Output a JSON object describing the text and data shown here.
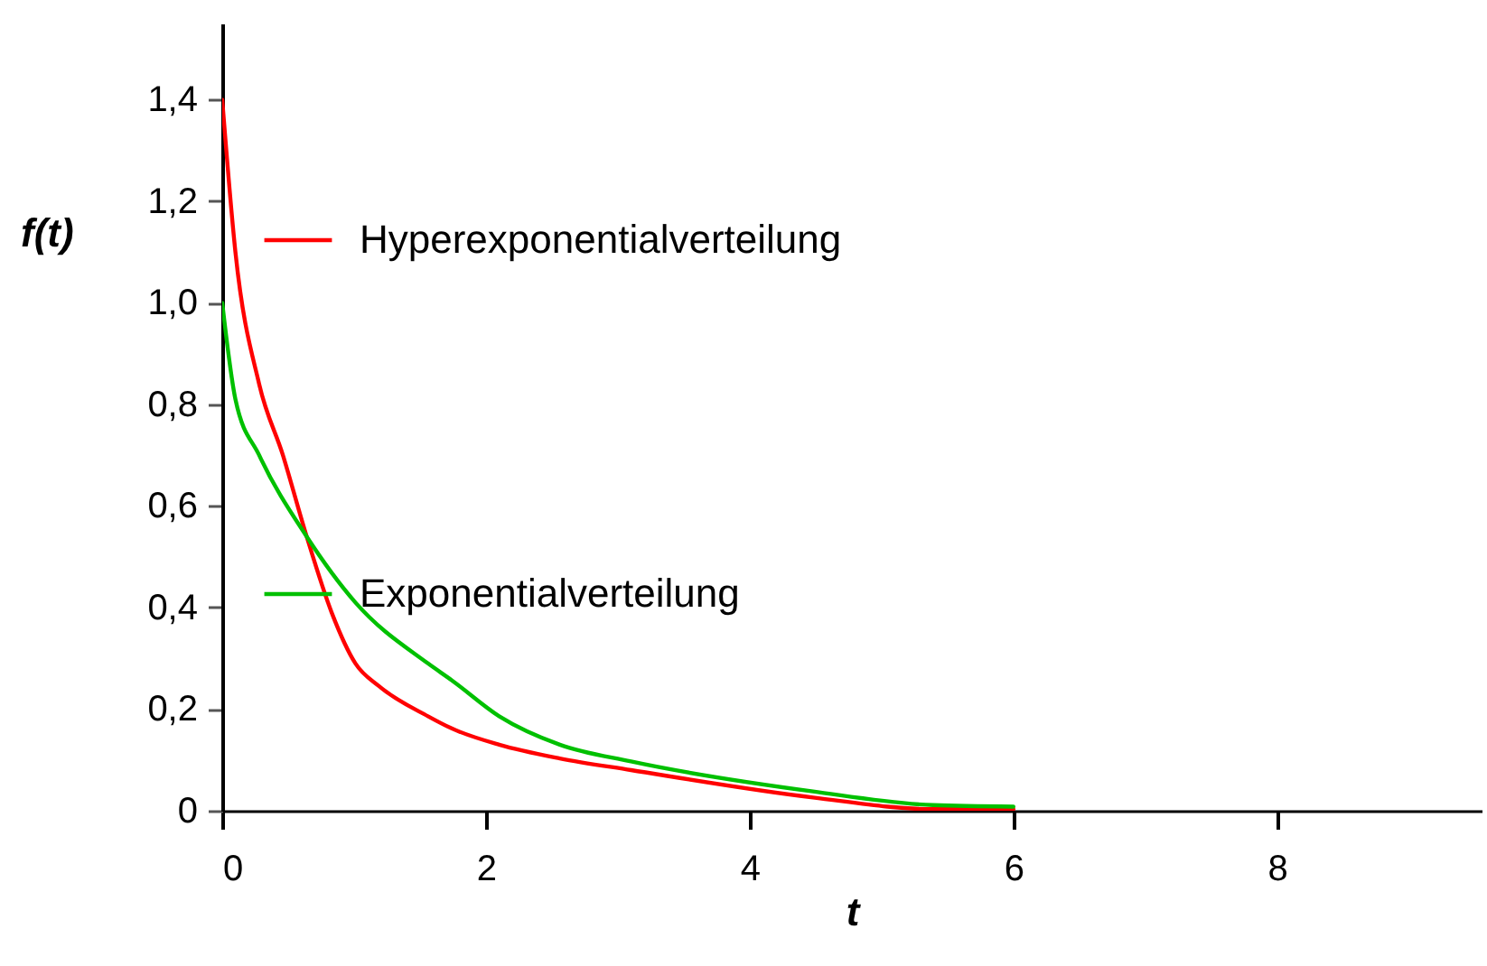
{
  "chart_data": {
    "type": "line",
    "xlabel": "t",
    "ylabel": "f(t)",
    "xlim": [
      0,
      9.55
    ],
    "ylim": [
      0,
      1.55
    ],
    "xticks": [
      0,
      2,
      4,
      6,
      8
    ],
    "yticks": [
      0,
      {
        "value": 0.2,
        "label": "0,2"
      },
      {
        "value": 0.4,
        "label": "0,4"
      },
      {
        "value": 0.6,
        "label": "0,6"
      },
      {
        "value": 0.8,
        "label": "0,8"
      },
      {
        "value": 1.0,
        "label": "1,0"
      },
      {
        "value": 1.2,
        "label": "1,2"
      },
      {
        "value": 1.4,
        "label": "1,4"
      }
    ],
    "legend": "left",
    "grid": false,
    "series": [
      {
        "name": "Hyperexponentialverteilung",
        "color": "#ff0000",
        "x": [
          0,
          0.1,
          0.28,
          0.46,
          0.64,
          0.83,
          1.01,
          1.19,
          1.56,
          1.74,
          2.1,
          2.56,
          3.1,
          4.48,
          5.39,
          6
        ],
        "values": [
          1.4,
          1.1,
          0.84,
          0.7,
          0.54,
          0.39,
          0.29,
          0.245,
          0.186,
          0.162,
          0.13,
          0.103,
          0.08,
          0.026,
          0.003,
          0.003
        ]
      },
      {
        "name": "Exponentialverteilung",
        "color": "#00c000",
        "x": [
          0,
          0.1,
          0.28,
          0.64,
          1.01,
          1.56,
          1.74,
          2.1,
          2.56,
          3.1,
          4.48,
          5.39,
          6
        ],
        "values": [
          1.0,
          0.81,
          0.7,
          0.54,
          0.41,
          0.29,
          0.257,
          0.186,
          0.13,
          0.097,
          0.038,
          0.011,
          0.008
        ]
      }
    ]
  }
}
